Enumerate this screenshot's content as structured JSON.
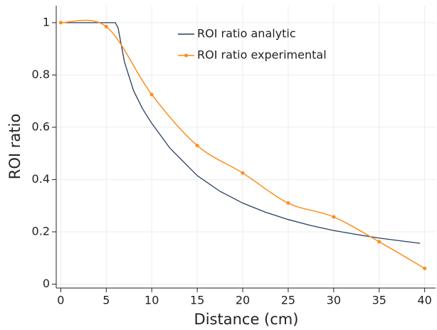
{
  "chart_data": {
    "type": "line",
    "x_label": "Distance (cm)",
    "y_label": "ROI ratio",
    "series": [
      {
        "name": "ROI ratio analytic",
        "color": "#2a3f5f",
        "markers": false,
        "x": [
          0,
          5,
          6,
          6.3,
          7,
          8,
          9,
          10,
          12,
          15,
          17.5,
          20,
          22.5,
          25,
          27.5,
          30,
          32.5,
          35,
          37.5,
          39.5
        ],
        "values": [
          1,
          1,
          1,
          0.98,
          0.85,
          0.74,
          0.67,
          0.615,
          0.52,
          0.415,
          0.355,
          0.31,
          0.275,
          0.247,
          0.224,
          0.205,
          0.19,
          0.176,
          0.165,
          0.156
        ]
      },
      {
        "name": "ROI ratio experimental",
        "color": "#ff8c1a",
        "markers": true,
        "x": [
          0,
          5,
          10,
          15,
          20,
          25,
          30,
          35,
          40
        ],
        "values": [
          1,
          0.985,
          0.725,
          0.53,
          0.425,
          0.31,
          0.257,
          0.162,
          0.06
        ]
      }
    ],
    "xlim": [
      -0.5,
      41.2
    ],
    "ylim": [
      -0.015,
      1.065
    ],
    "xticks": [
      0,
      5,
      10,
      15,
      20,
      25,
      30,
      35,
      40
    ],
    "yticks": [
      0,
      0.2,
      0.4,
      0.6,
      0.8,
      1
    ],
    "grid": true
  }
}
